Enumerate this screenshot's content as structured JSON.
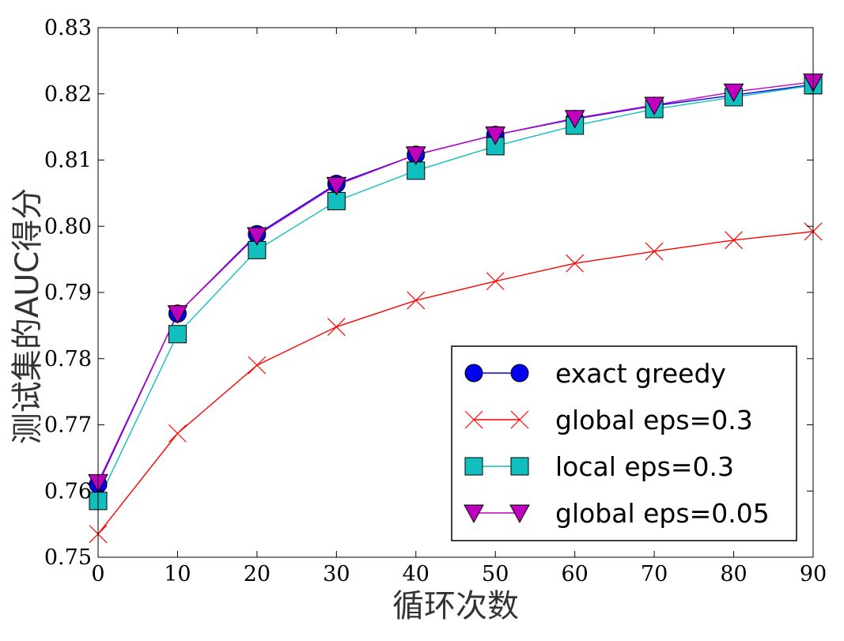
{
  "chart_data": {
    "type": "line",
    "title": "",
    "xlabel": "循环次数",
    "ylabel": "测试集的AUC得分",
    "xlim": [
      0,
      90
    ],
    "ylim": [
      0.75,
      0.83
    ],
    "xticks": [
      0,
      10,
      20,
      30,
      40,
      50,
      60,
      70,
      80,
      90
    ],
    "yticks": [
      0.75,
      0.76,
      0.77,
      0.78,
      0.79,
      0.8,
      0.81,
      0.82,
      0.83
    ],
    "xtick_labels": [
      "0",
      "10",
      "20",
      "30",
      "40",
      "50",
      "60",
      "70",
      "80",
      "90"
    ],
    "ytick_labels": [
      "0.75",
      "0.76",
      "0.77",
      "0.78",
      "0.79",
      "0.80",
      "0.81",
      "0.82",
      "0.83"
    ],
    "grid": false,
    "legend_position": "bottom-right",
    "x": [
      0,
      10,
      20,
      30,
      40,
      50,
      60,
      70,
      80,
      90
    ],
    "series": [
      {
        "name": "exact greedy",
        "color": "#0000ee",
        "marker": "circle",
        "values": [
          0.761,
          0.7868,
          0.7988,
          0.8064,
          0.8108,
          0.8138,
          0.8162,
          0.8182,
          0.8198,
          0.8214
        ]
      },
      {
        "name": "global eps=0.3",
        "color": "#ff0000",
        "marker": "x",
        "values": [
          0.7535,
          0.7687,
          0.779,
          0.7848,
          0.7888,
          0.7917,
          0.7944,
          0.7962,
          0.7979,
          0.7992
        ]
      },
      {
        "name": "local eps=0.3",
        "color": "#11bfbf",
        "marker": "square",
        "values": [
          0.7585,
          0.7837,
          0.7964,
          0.8038,
          0.8084,
          0.8121,
          0.8152,
          0.8177,
          0.8195,
          0.8213
        ]
      },
      {
        "name": "global eps=0.05",
        "color": "#bf00bf",
        "marker": "triangle-down",
        "values": [
          0.7613,
          0.7868,
          0.7986,
          0.8062,
          0.8108,
          0.8138,
          0.8163,
          0.8183,
          0.8203,
          0.8218
        ]
      }
    ]
  }
}
